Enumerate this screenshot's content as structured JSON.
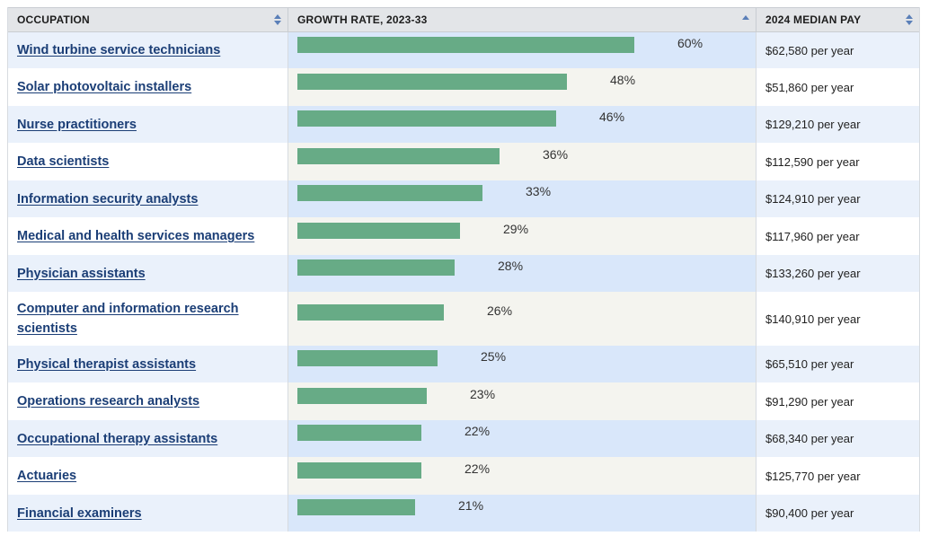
{
  "header": {
    "occupation": "OCCUPATION",
    "growth": "GROWTH RATE, 2023-33",
    "pay": "2024 MEDIAN PAY"
  },
  "rows": [
    {
      "occupation": "Wind turbine service technicians",
      "growth_label": "60%",
      "growth": 60,
      "pay": "$62,580 per year"
    },
    {
      "occupation": "Solar photovoltaic installers",
      "growth_label": "48%",
      "growth": 48,
      "pay": "$51,860 per year"
    },
    {
      "occupation": "Nurse practitioners",
      "growth_label": "46%",
      "growth": 46,
      "pay": "$129,210 per year"
    },
    {
      "occupation": "Data scientists",
      "growth_label": "36%",
      "growth": 36,
      "pay": "$112,590 per year"
    },
    {
      "occupation": "Information security analysts",
      "growth_label": "33%",
      "growth": 33,
      "pay": "$124,910 per year"
    },
    {
      "occupation": "Medical and health services managers",
      "growth_label": "29%",
      "growth": 29,
      "pay": "$117,960 per year"
    },
    {
      "occupation": "Physician assistants",
      "growth_label": "28%",
      "growth": 28,
      "pay": "$133,260 per year"
    },
    {
      "occupation": "Computer and information research scientists",
      "growth_label": "26%",
      "growth": 26,
      "pay": "$140,910 per year"
    },
    {
      "occupation": "Physical therapist assistants",
      "growth_label": "25%",
      "growth": 25,
      "pay": "$65,510 per year"
    },
    {
      "occupation": "Operations research analysts",
      "growth_label": "23%",
      "growth": 23,
      "pay": "$91,290 per year"
    },
    {
      "occupation": "Occupational therapy assistants",
      "growth_label": "22%",
      "growth": 22,
      "pay": "$68,340 per year"
    },
    {
      "occupation": "Actuaries",
      "growth_label": "22%",
      "growth": 22,
      "pay": "$125,770 per year"
    },
    {
      "occupation": "Financial examiners",
      "growth_label": "21%",
      "growth": 21,
      "pay": "$90,400 per year"
    }
  ],
  "colors": {
    "bar": "#67ab86",
    "link": "#1b3e76",
    "sort_icon": "#5a7fb8"
  },
  "chart_data": {
    "type": "bar",
    "orientation": "horizontal",
    "title": "",
    "xlabel": "GROWTH RATE, 2023-33",
    "ylabel": "OCCUPATION",
    "categories": [
      "Wind turbine service technicians",
      "Solar photovoltaic installers",
      "Nurse practitioners",
      "Data scientists",
      "Information security analysts",
      "Medical and health services managers",
      "Physician assistants",
      "Computer and information research scientists",
      "Physical therapist assistants",
      "Operations research analysts",
      "Occupational therapy assistants",
      "Actuaries",
      "Financial examiners"
    ],
    "values": [
      60,
      48,
      46,
      36,
      33,
      29,
      28,
      26,
      25,
      23,
      22,
      22,
      21
    ],
    "unit": "%",
    "grid": false
  }
}
